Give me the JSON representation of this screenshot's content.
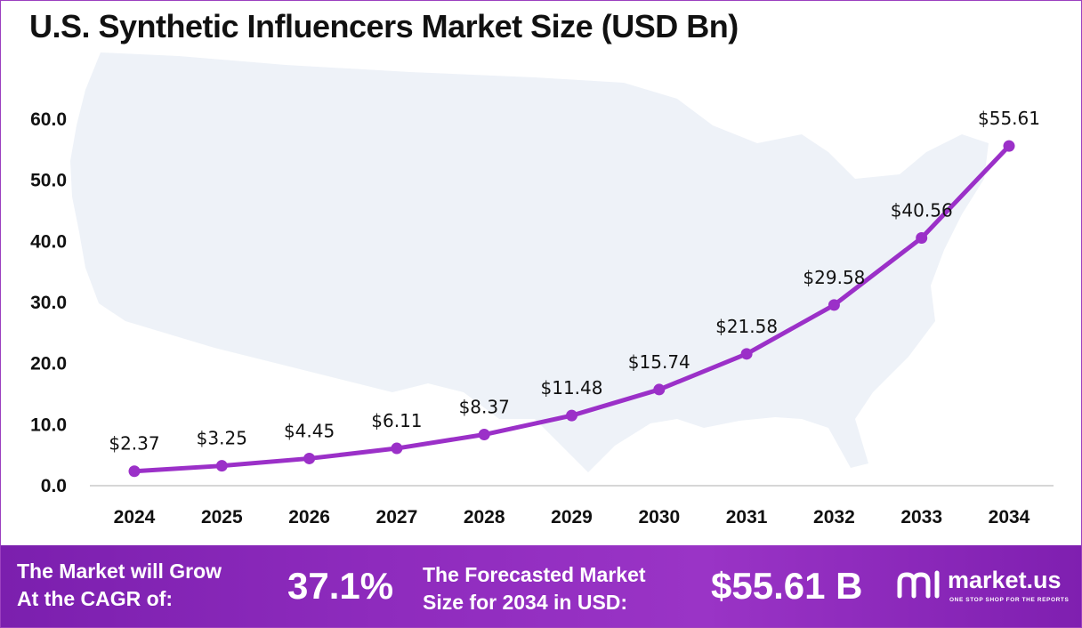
{
  "title": "U.S. Synthetic Influencers Market Size (USD Bn)",
  "chart_data": {
    "type": "line",
    "categories": [
      "2024",
      "2025",
      "2026",
      "2027",
      "2028",
      "2029",
      "2030",
      "2031",
      "2032",
      "2033",
      "2034"
    ],
    "values": [
      2.37,
      3.25,
      4.45,
      6.11,
      8.37,
      11.48,
      15.74,
      21.58,
      29.58,
      40.56,
      55.61
    ],
    "data_labels": [
      "$2.37",
      "$3.25",
      "$4.45",
      "$6.11",
      "$8.37",
      "$11.48",
      "$15.74",
      "$21.58",
      "$29.58",
      "$40.56",
      "$55.61"
    ],
    "ylim": [
      0,
      60
    ],
    "yticks": [
      "0.0",
      "10.0",
      "20.0",
      "30.0",
      "40.0",
      "50.0",
      "60.0"
    ],
    "grid": false,
    "line_color": "#9b30c8",
    "background": "U.S. map silhouette"
  },
  "footer": {
    "cagr_line1": "The Market will Grow",
    "cagr_line2": "At the CAGR of:",
    "cagr_value": "37.1%",
    "forecast_line1": "The Forecasted Market",
    "forecast_line2": "Size for 2034 in USD:",
    "forecast_value": "$55.61 B"
  },
  "brand": {
    "name": "market.us",
    "tagline": "ONE STOP SHOP FOR THE REPORTS",
    "icon": "market-us-logo-icon"
  }
}
